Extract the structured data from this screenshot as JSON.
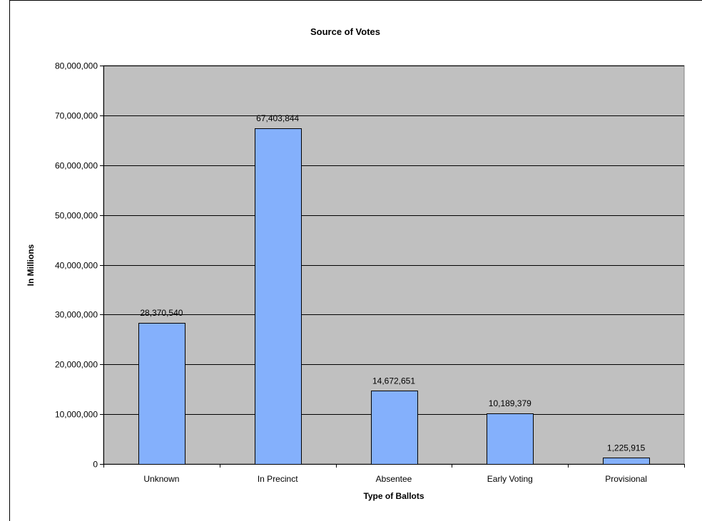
{
  "chart_data": {
    "type": "bar",
    "title": "Source of Votes",
    "xlabel": "Type of Ballots",
    "ylabel": "In Millions",
    "categories": [
      "Unknown",
      "In Precinct",
      "Absentee",
      "Early Voting",
      "Provisional"
    ],
    "values": [
      28370540,
      67403844,
      14672651,
      10189379,
      1225915
    ],
    "data_labels": [
      "28,370,540",
      "67,403,844",
      "14,672,651",
      "10,189,379",
      "1,225,915"
    ],
    "ylim": [
      0,
      80000000
    ],
    "yticks": [
      0,
      10000000,
      20000000,
      30000000,
      40000000,
      50000000,
      60000000,
      70000000,
      80000000
    ],
    "ytick_labels": [
      "0",
      "10,000,000",
      "20,000,000",
      "30,000,000",
      "40,000,000",
      "50,000,000",
      "60,000,000",
      "70,000,000",
      "80,000,000"
    ],
    "grid": true,
    "legend": "none",
    "colors": {
      "bar_fill": "#84b0fc",
      "plot_background": "#c0c0c0"
    }
  }
}
